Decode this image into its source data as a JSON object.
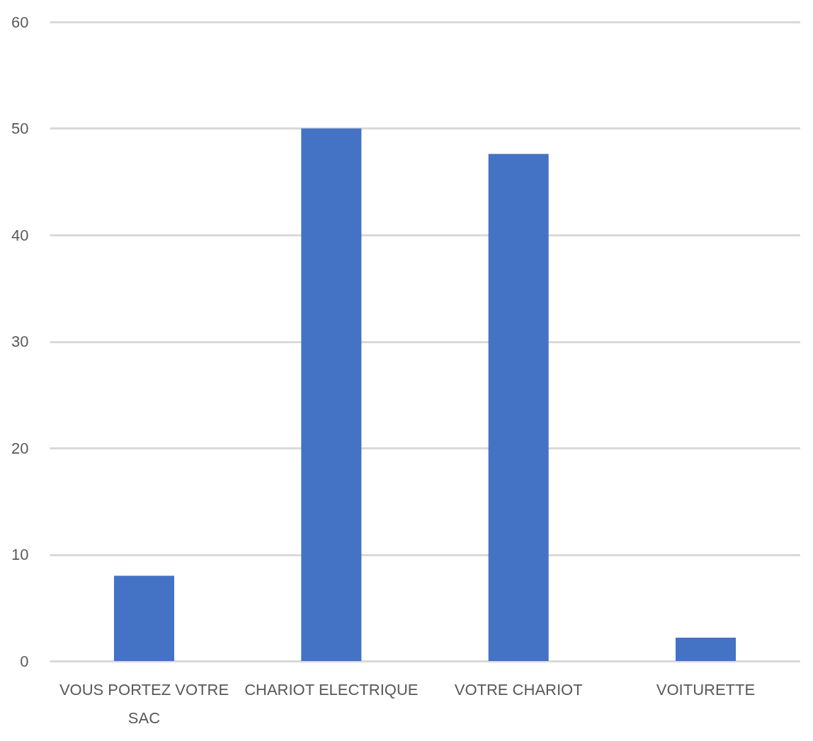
{
  "chart_data": {
    "type": "bar",
    "categories": [
      "VOUS PORTEZ VOTRE SAC",
      "CHARIOT ELECTRIQUE",
      "VOTRE CHARIOT",
      "VOITURETTE"
    ],
    "values": [
      8,
      50,
      47.6,
      2.2
    ],
    "color": "#4472c4",
    "ylim": [
      0,
      60
    ],
    "yticks": [
      0,
      10,
      20,
      30,
      40,
      50,
      60
    ],
    "grid": "y"
  }
}
